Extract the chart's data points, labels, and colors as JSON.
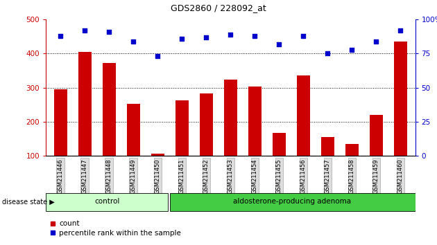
{
  "title": "GDS2860 / 228092_at",
  "categories": [
    "GSM211446",
    "GSM211447",
    "GSM211448",
    "GSM211449",
    "GSM211450",
    "GSM211451",
    "GSM211452",
    "GSM211453",
    "GSM211454",
    "GSM211455",
    "GSM211456",
    "GSM211457",
    "GSM211458",
    "GSM211459",
    "GSM211460"
  ],
  "counts": [
    295,
    405,
    372,
    252,
    105,
    262,
    283,
    323,
    303,
    167,
    336,
    154,
    135,
    220,
    435
  ],
  "percentiles": [
    88,
    92,
    91,
    84,
    73,
    86,
    87,
    89,
    88,
    82,
    88,
    75,
    78,
    84,
    92
  ],
  "ylim_left": [
    100,
    500
  ],
  "ylim_right": [
    0,
    100
  ],
  "yticks_left": [
    100,
    200,
    300,
    400,
    500
  ],
  "yticks_right": [
    0,
    25,
    50,
    75,
    100
  ],
  "bar_color": "#cc0000",
  "dot_color": "#0000cc",
  "grid_color": "#000000",
  "control_color": "#ccffcc",
  "adenoma_color": "#44cc44",
  "label_color_left": "#cc0000",
  "label_color_right": "#0000cc",
  "control_samples": 5,
  "total_samples": 15,
  "control_label": "control",
  "adenoma_label": "aldosterone-producing adenoma",
  "disease_state_label": "disease state",
  "legend_count": "count",
  "legend_percentile": "percentile rank within the sample",
  "bar_width": 0.55,
  "figsize": [
    6.3,
    3.54
  ],
  "dpi": 100
}
